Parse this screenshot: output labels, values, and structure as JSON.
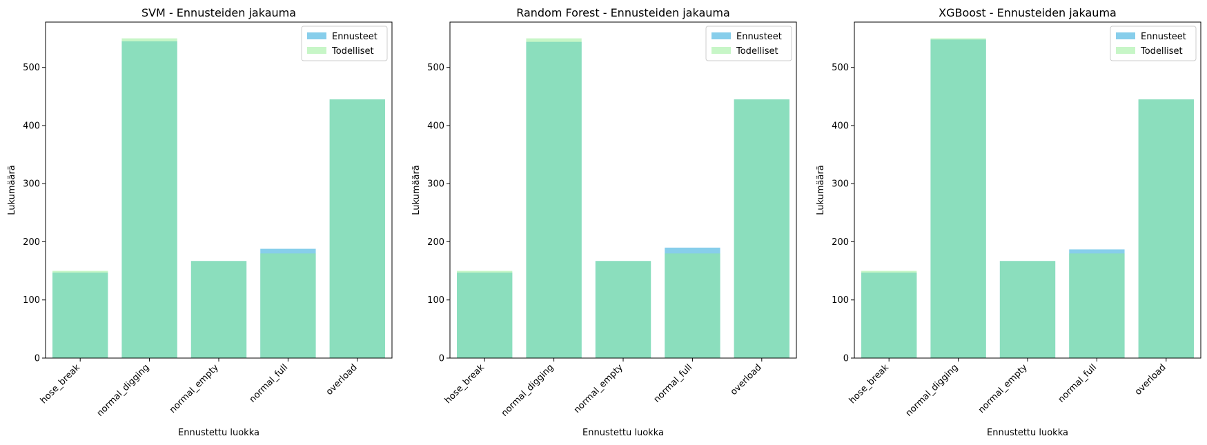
{
  "colors": {
    "predicted": "#87CEEB",
    "actual": "#90EE90",
    "overlap": "#8CDDBD",
    "text": "#000000",
    "axis": "#000000"
  },
  "chart_data": [
    {
      "type": "bar",
      "title": "SVM - Ennusteiden jakauma",
      "xlabel": "Ennustettu luokka",
      "ylabel": "Lukumäärä",
      "categories": [
        "hose_break",
        "normal_digging",
        "normal_empty",
        "normal_full",
        "overload"
      ],
      "series": [
        {
          "name": "Ennusteet",
          "values": [
            147,
            545,
            167,
            188,
            445
          ]
        },
        {
          "name": "Todelliset",
          "values": [
            150,
            550,
            167,
            180,
            445
          ]
        }
      ],
      "ylim": [
        0,
        578
      ],
      "yticks": [
        0,
        100,
        200,
        300,
        400,
        500
      ],
      "legend": "top-right",
      "grid": false
    },
    {
      "type": "bar",
      "title": "Random Forest - Ennusteiden jakauma",
      "xlabel": "Ennustettu luokka",
      "ylabel": "Lukumäärä",
      "categories": [
        "hose_break",
        "normal_digging",
        "normal_empty",
        "normal_full",
        "overload"
      ],
      "series": [
        {
          "name": "Ennusteet",
          "values": [
            147,
            544,
            167,
            190,
            445
          ]
        },
        {
          "name": "Todelliset",
          "values": [
            150,
            550,
            167,
            180,
            445
          ]
        }
      ],
      "ylim": [
        0,
        578
      ],
      "yticks": [
        0,
        100,
        200,
        300,
        400,
        500
      ],
      "legend": "top-right",
      "grid": false
    },
    {
      "type": "bar",
      "title": "XGBoost - Ennusteiden jakauma",
      "xlabel": "Ennustettu luokka",
      "ylabel": "Lukumäärä",
      "categories": [
        "hose_break",
        "normal_digging",
        "normal_empty",
        "normal_full",
        "overload"
      ],
      "series": [
        {
          "name": "Ennusteet",
          "values": [
            147,
            548,
            167,
            187,
            445
          ]
        },
        {
          "name": "Todelliset",
          "values": [
            150,
            550,
            167,
            180,
            445
          ]
        }
      ],
      "ylim": [
        0,
        578
      ],
      "yticks": [
        0,
        100,
        200,
        300,
        400,
        500
      ],
      "legend": "top-right",
      "grid": false
    }
  ]
}
